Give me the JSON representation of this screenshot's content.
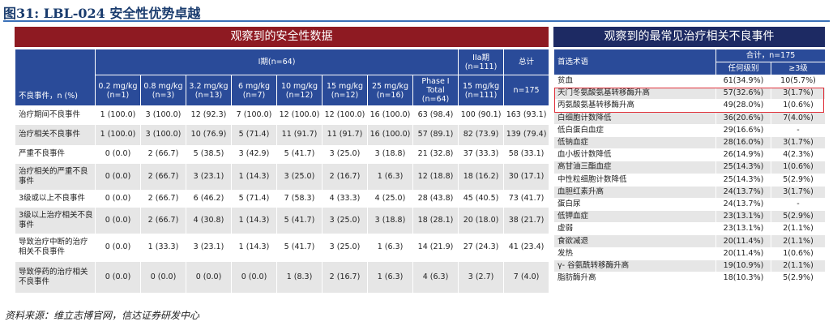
{
  "title": "图31: LBL-024 安全性优势卓越",
  "left": {
    "banner": "观察到的安全性数据",
    "row_header": "不良事件，n (%)",
    "group_phase1": "I期(n=64)",
    "group_phase2": "IIa期 (n=111)",
    "group_total": "总计",
    "columns": [
      "0.2 mg/kg (n=1)",
      "0.8 mg/kg (n=3)",
      "3.2 mg/kg (n=13)",
      "6 mg/kg (n=7)",
      "10 mg/kg (n=12)",
      "15 mg/kg (n=12)",
      "25 mg/kg (n=16)",
      "Phase I Total (n=64)",
      "15 mg/kg (n=111)",
      "n=175"
    ],
    "rows": [
      {
        "label": "治疗期间不良事件",
        "values": [
          "1 (100.0)",
          "3 (100.0)",
          "12 (92.3)",
          "7 (100.0)",
          "12 (100.0)",
          "12 (100.0)",
          "16 (100.0)",
          "63 (98.4)",
          "100 (90.1)",
          "163 (93.1)"
        ]
      },
      {
        "label": "治疗相关不良事件",
        "values": [
          "1 (100.0)",
          "3 (100.0)",
          "10 (76.9)",
          "5 (71.4)",
          "11 (91.7)",
          "11 (91.7)",
          "16 (100.0)",
          "57 (89.1)",
          "82 (73.9)",
          "139 (79.4)"
        ]
      },
      {
        "label": "严重不良事件",
        "values": [
          "0 (0.0)",
          "2 (66.7)",
          "5 (38.5)",
          "3 (42.9)",
          "5 (41.7)",
          "3 (25.0)",
          "3 (18.8)",
          "21 (32.8)",
          "37 (33.3)",
          "58 (33.1)"
        ]
      },
      {
        "label": "治疗相关的严重不良事件",
        "values": [
          "0 (0.0)",
          "2 (66.7)",
          "3 (23.1)",
          "1 (14.3)",
          "3 (25.0)",
          "2 (16.7)",
          "1 (6.3)",
          "12 (18.8)",
          "18 (16.2)",
          "30 (17.1)"
        ]
      },
      {
        "label": "3级或以上不良事件",
        "values": [
          "0 (0.0)",
          "2 (66.7)",
          "6 (46.2)",
          "5 (71.4)",
          "7 (58.3)",
          "4 (33.3)",
          "4 (25.0)",
          "28 (43.8)",
          "45 (40.5)",
          "73 (41.7)"
        ]
      },
      {
        "label": "3级以上治疗相关不良事件",
        "values": [
          "0 (0.0)",
          "2 (66.7)",
          "4 (30.8)",
          "1 (14.3)",
          "5 (41.7)",
          "3 (25.0)",
          "3 (18.8)",
          "18 (28.1)",
          "20 (18.0)",
          "38 (21.7)"
        ]
      },
      {
        "label": "导致治疗中断的治疗相关不良事件",
        "values": [
          "0 (0.0)",
          "1 (33.3)",
          "3 (23.1)",
          "1 (14.3)",
          "5 (41.7)",
          "3 (25.0)",
          "1 (6.3)",
          "14 (21.9)",
          "27 (24.3)",
          "41 (23.4)"
        ]
      },
      {
        "label": "导致停药的治疗相关不良事件",
        "values": [
          "0 (0.0)",
          "0 (0.0)",
          "0 (0.0)",
          "0 (0.0)",
          "1 (8.3)",
          "2 (16.7)",
          "1 (6.3)",
          "4 (6.3)",
          "3 (2.7)",
          "7 (4.0)"
        ]
      }
    ]
  },
  "right": {
    "banner": "观察到的最常见治疗相关不良事件",
    "col_term": "首选术语",
    "col_group": "合计，n=175",
    "col_any": "任何级别",
    "col_g3": "≥3级",
    "highlight_color": "#e0303a",
    "rows": [
      [
        "贫血",
        "61(34.9%)",
        "10(5.7%)"
      ],
      [
        "天门冬氨酸氨基转移酶升高",
        "57(32.6%)",
        "3(1.7%)"
      ],
      [
        "丙氨酸氨基转移酶升高",
        "49(28.0%)",
        "1(0.6%)"
      ],
      [
        "白细胞计数降低",
        "36(20.6%)",
        "7(4.0%)"
      ],
      [
        "低白蛋白血症",
        "29(16.6%)",
        "-"
      ],
      [
        "低钠血症",
        "28(16.0%)",
        "3(1.7%)"
      ],
      [
        "血小板计数降低",
        "26(14.9%)",
        "4(2.3%)"
      ],
      [
        "高甘油三酯血症",
        "25(14.3%)",
        "1(0.6%)"
      ],
      [
        "中性粒细胞计数降低",
        "25(14.3%)",
        "5(2.9%)"
      ],
      [
        "血胆红素升高",
        "24(13.7%)",
        "3(1.7%)"
      ],
      [
        "蛋白尿",
        "24(13.7%)",
        "-"
      ],
      [
        "低钾血症",
        "23(13.1%)",
        "5(2.9%)"
      ],
      [
        "虚弱",
        "23(13.1%)",
        "2(1.1%)"
      ],
      [
        "食欲减退",
        "20(11.4%)",
        "2(1.1%)"
      ],
      [
        "发热",
        "20(11.4%)",
        "1(0.6%)"
      ],
      [
        "γ- 谷氨酰转移酶升高",
        "19(10.9%)",
        "2(1.1%)"
      ],
      [
        "脂肪酶升高",
        "18(10.3%)",
        "5(2.9%)"
      ]
    ]
  },
  "source": "资料来源：维立志博官网，信达证券研发中心"
}
